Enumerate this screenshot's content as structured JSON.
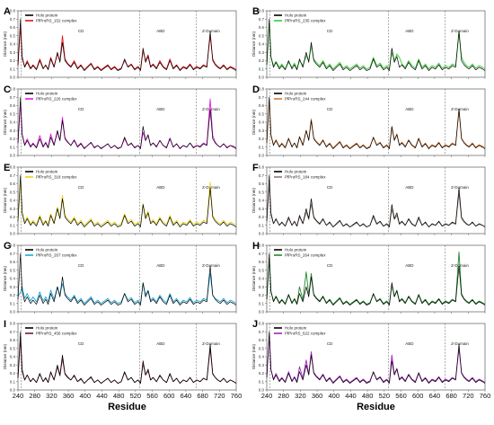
{
  "figure": {
    "xlabel": "Residue",
    "ylabel": "Distance (nm)",
    "x_ticks": [
      240,
      280,
      320,
      360,
      400,
      440,
      480,
      520,
      560,
      600,
      640,
      680,
      720,
      760
    ],
    "xlim": [
      240,
      760
    ],
    "ylim": [
      0,
      0.8
    ],
    "y_ticks": [
      "0.0",
      "0.1",
      "0.2",
      "0.3",
      "0.4",
      "0.5",
      "0.6",
      "0.7",
      "0.8"
    ],
    "regions": [
      {
        "label": "CD",
        "x": 390
      },
      {
        "label": "ABD",
        "x": 580
      },
      {
        "label": "Z-Domain",
        "x": 700
      }
    ],
    "boundaries": [
      247,
      530,
      665
    ],
    "reference_series": {
      "name": "Holo protein",
      "color": "#000000"
    },
    "panels": [
      {
        "letter": "A",
        "ligand": "PfProRS_152 complex",
        "color": "#e3141c",
        "show_regions": true
      },
      {
        "letter": "B",
        "ligand": "PfProRS_235 complex",
        "color": "#2fd12f",
        "show_regions": true
      },
      {
        "letter": "C",
        "ligand": "PfProRS_226 complex",
        "color": "#e21ce0",
        "show_regions": true
      },
      {
        "letter": "D",
        "ligand": "PfProRS_244 complex",
        "color": "#d97a32",
        "show_regions": true
      },
      {
        "letter": "E",
        "ligand": "PfProRS_318 complex",
        "color": "#e8d317",
        "show_regions": true
      },
      {
        "letter": "F",
        "ligand": "PfProRS_184 complex",
        "color": "#8c7b72",
        "show_regions": true
      },
      {
        "letter": "G",
        "ligand": "PfProRS_267 complex",
        "color": "#1aa6d9",
        "show_regions": true
      },
      {
        "letter": "H",
        "ligand": "PfProRS_264 complex",
        "color": "#1f8a2a",
        "show_regions": true
      },
      {
        "letter": "I",
        "ligand": "PfProRS_456 complex",
        "color": "#6b1e2a",
        "show_regions": true
      },
      {
        "letter": "J",
        "ligand": "PfProRS_622 complex",
        "color": "#a61fc4",
        "show_regions": true
      }
    ]
  },
  "chart_data": {
    "type": "line",
    "xlabel": "Residue",
    "ylabel": "Distance (nm)",
    "xlim": [
      240,
      760
    ],
    "ylim": [
      0,
      0.8
    ],
    "holo": {
      "name": "Holo protein",
      "x": [
        240,
        246,
        250,
        256,
        262,
        270,
        276,
        284,
        292,
        300,
        306,
        312,
        318,
        326,
        334,
        340,
        346,
        352,
        358,
        366,
        374,
        382,
        390,
        398,
        406,
        414,
        422,
        430,
        438,
        446,
        454,
        462,
        470,
        478,
        486,
        494,
        502,
        510,
        518,
        526,
        532,
        538,
        544,
        550,
        556,
        562,
        570,
        578,
        586,
        594,
        602,
        610,
        618,
        626,
        634,
        642,
        650,
        658,
        666,
        674,
        682,
        690,
        698,
        704,
        710,
        716,
        722,
        730,
        738,
        746,
        754,
        760
      ],
      "y": [
        0.15,
        0.7,
        0.25,
        0.12,
        0.18,
        0.1,
        0.14,
        0.09,
        0.2,
        0.1,
        0.15,
        0.09,
        0.22,
        0.12,
        0.3,
        0.18,
        0.42,
        0.2,
        0.16,
        0.12,
        0.18,
        0.1,
        0.14,
        0.08,
        0.12,
        0.16,
        0.09,
        0.12,
        0.08,
        0.11,
        0.14,
        0.09,
        0.12,
        0.08,
        0.1,
        0.22,
        0.12,
        0.15,
        0.09,
        0.12,
        0.08,
        0.35,
        0.18,
        0.25,
        0.12,
        0.15,
        0.1,
        0.18,
        0.12,
        0.09,
        0.2,
        0.1,
        0.14,
        0.08,
        0.12,
        0.1,
        0.15,
        0.09,
        0.12,
        0.1,
        0.14,
        0.12,
        0.55,
        0.2,
        0.15,
        0.12,
        0.1,
        0.14,
        0.09,
        0.12,
        0.1,
        0.08
      ]
    },
    "series": [
      {
        "name": "PfProRS_152 complex",
        "panel": "A",
        "y": [
          0.14,
          0.62,
          0.22,
          0.13,
          0.2,
          0.11,
          0.15,
          0.1,
          0.22,
          0.11,
          0.14,
          0.1,
          0.24,
          0.13,
          0.28,
          0.2,
          0.5,
          0.22,
          0.17,
          0.13,
          0.2,
          0.11,
          0.15,
          0.09,
          0.13,
          0.17,
          0.1,
          0.13,
          0.09,
          0.12,
          0.15,
          0.1,
          0.13,
          0.09,
          0.11,
          0.2,
          0.13,
          0.16,
          0.1,
          0.13,
          0.09,
          0.32,
          0.2,
          0.27,
          0.13,
          0.16,
          0.11,
          0.2,
          0.13,
          0.1,
          0.22,
          0.11,
          0.15,
          0.09,
          0.13,
          0.11,
          0.16,
          0.1,
          0.13,
          0.11,
          0.15,
          0.13,
          0.5,
          0.22,
          0.16,
          0.13,
          0.11,
          0.15,
          0.1,
          0.13,
          0.11,
          0.09
        ]
      },
      {
        "name": "PfProRS_235 complex",
        "panel": "B",
        "y": [
          0.13,
          0.66,
          0.24,
          0.14,
          0.19,
          0.12,
          0.16,
          0.1,
          0.18,
          0.12,
          0.17,
          0.1,
          0.2,
          0.14,
          0.26,
          0.2,
          0.38,
          0.22,
          0.18,
          0.14,
          0.2,
          0.12,
          0.16,
          0.1,
          0.14,
          0.18,
          0.11,
          0.14,
          0.1,
          0.13,
          0.16,
          0.11,
          0.14,
          0.1,
          0.12,
          0.24,
          0.14,
          0.17,
          0.11,
          0.14,
          0.1,
          0.3,
          0.2,
          0.28,
          0.24,
          0.16,
          0.12,
          0.2,
          0.14,
          0.11,
          0.22,
          0.12,
          0.16,
          0.1,
          0.14,
          0.12,
          0.17,
          0.11,
          0.14,
          0.12,
          0.16,
          0.14,
          0.55,
          0.24,
          0.18,
          0.14,
          0.12,
          0.16,
          0.11,
          0.14,
          0.12,
          0.1
        ]
      },
      {
        "name": "PfProRS_226 complex",
        "panel": "C",
        "y": [
          0.14,
          0.64,
          0.26,
          0.13,
          0.2,
          0.11,
          0.15,
          0.1,
          0.24,
          0.11,
          0.16,
          0.1,
          0.26,
          0.13,
          0.28,
          0.18,
          0.46,
          0.21,
          0.17,
          0.12,
          0.19,
          0.11,
          0.15,
          0.09,
          0.12,
          0.15,
          0.1,
          0.12,
          0.09,
          0.11,
          0.14,
          0.09,
          0.12,
          0.09,
          0.1,
          0.2,
          0.12,
          0.14,
          0.1,
          0.12,
          0.09,
          0.28,
          0.18,
          0.24,
          0.12,
          0.15,
          0.11,
          0.18,
          0.12,
          0.1,
          0.21,
          0.1,
          0.14,
          0.09,
          0.12,
          0.1,
          0.15,
          0.1,
          0.12,
          0.11,
          0.15,
          0.13,
          0.68,
          0.24,
          0.16,
          0.12,
          0.1,
          0.14,
          0.1,
          0.12,
          0.11,
          0.09
        ]
      },
      {
        "name": "PfProRS_244 complex",
        "panel": "D",
        "y": [
          0.15,
          0.68,
          0.24,
          0.13,
          0.19,
          0.11,
          0.15,
          0.1,
          0.21,
          0.11,
          0.15,
          0.1,
          0.23,
          0.13,
          0.3,
          0.19,
          0.44,
          0.21,
          0.17,
          0.13,
          0.19,
          0.11,
          0.15,
          0.09,
          0.13,
          0.17,
          0.1,
          0.13,
          0.09,
          0.12,
          0.15,
          0.1,
          0.13,
          0.09,
          0.11,
          0.21,
          0.13,
          0.16,
          0.1,
          0.13,
          0.09,
          0.33,
          0.19,
          0.26,
          0.13,
          0.16,
          0.11,
          0.19,
          0.13,
          0.1,
          0.21,
          0.11,
          0.15,
          0.09,
          0.13,
          0.11,
          0.16,
          0.1,
          0.13,
          0.11,
          0.15,
          0.13,
          0.56,
          0.21,
          0.16,
          0.13,
          0.11,
          0.15,
          0.1,
          0.13,
          0.11,
          0.09
        ]
      },
      {
        "name": "PfProRS_318 complex",
        "panel": "E",
        "y": [
          0.16,
          0.66,
          0.26,
          0.14,
          0.2,
          0.12,
          0.16,
          0.11,
          0.22,
          0.12,
          0.16,
          0.11,
          0.24,
          0.14,
          0.32,
          0.2,
          0.46,
          0.22,
          0.18,
          0.14,
          0.2,
          0.12,
          0.16,
          0.1,
          0.14,
          0.18,
          0.11,
          0.14,
          0.1,
          0.13,
          0.16,
          0.11,
          0.14,
          0.1,
          0.12,
          0.24,
          0.14,
          0.17,
          0.11,
          0.14,
          0.1,
          0.36,
          0.2,
          0.27,
          0.14,
          0.17,
          0.12,
          0.2,
          0.14,
          0.11,
          0.22,
          0.12,
          0.16,
          0.1,
          0.14,
          0.12,
          0.17,
          0.11,
          0.14,
          0.12,
          0.16,
          0.14,
          0.62,
          0.22,
          0.17,
          0.14,
          0.12,
          0.16,
          0.11,
          0.14,
          0.12,
          0.1
        ]
      },
      {
        "name": "PfProRS_184 complex",
        "panel": "F",
        "y": [
          0.14,
          0.6,
          0.22,
          0.12,
          0.17,
          0.1,
          0.13,
          0.09,
          0.18,
          0.1,
          0.14,
          0.09,
          0.2,
          0.12,
          0.26,
          0.17,
          0.36,
          0.19,
          0.15,
          0.11,
          0.17,
          0.1,
          0.13,
          0.08,
          0.11,
          0.15,
          0.09,
          0.11,
          0.08,
          0.1,
          0.13,
          0.09,
          0.11,
          0.08,
          0.1,
          0.2,
          0.11,
          0.14,
          0.09,
          0.11,
          0.08,
          0.3,
          0.17,
          0.22,
          0.11,
          0.14,
          0.1,
          0.17,
          0.11,
          0.09,
          0.18,
          0.1,
          0.13,
          0.08,
          0.11,
          0.1,
          0.14,
          0.09,
          0.11,
          0.1,
          0.13,
          0.11,
          0.48,
          0.18,
          0.14,
          0.11,
          0.1,
          0.13,
          0.09,
          0.11,
          0.1,
          0.08
        ]
      },
      {
        "name": "PfProRS_267 complex",
        "panel": "G",
        "y": [
          0.18,
          0.24,
          0.3,
          0.16,
          0.22,
          0.13,
          0.18,
          0.12,
          0.24,
          0.13,
          0.18,
          0.12,
          0.26,
          0.15,
          0.3,
          0.2,
          0.34,
          0.22,
          0.18,
          0.14,
          0.2,
          0.12,
          0.16,
          0.1,
          0.14,
          0.18,
          0.11,
          0.14,
          0.1,
          0.13,
          0.16,
          0.11,
          0.14,
          0.1,
          0.12,
          0.22,
          0.14,
          0.17,
          0.11,
          0.14,
          0.1,
          0.34,
          0.2,
          0.26,
          0.14,
          0.17,
          0.12,
          0.2,
          0.14,
          0.11,
          0.22,
          0.12,
          0.16,
          0.1,
          0.14,
          0.12,
          0.17,
          0.11,
          0.14,
          0.12,
          0.16,
          0.14,
          0.46,
          0.2,
          0.16,
          0.14,
          0.12,
          0.16,
          0.11,
          0.14,
          0.12,
          0.1
        ]
      },
      {
        "name": "PfProRS_264 complex",
        "panel": "H",
        "y": [
          0.15,
          0.64,
          0.24,
          0.13,
          0.19,
          0.11,
          0.15,
          0.1,
          0.21,
          0.11,
          0.16,
          0.1,
          0.3,
          0.14,
          0.48,
          0.2,
          0.46,
          0.21,
          0.17,
          0.13,
          0.19,
          0.11,
          0.15,
          0.09,
          0.13,
          0.17,
          0.1,
          0.13,
          0.09,
          0.12,
          0.15,
          0.1,
          0.13,
          0.09,
          0.11,
          0.21,
          0.13,
          0.16,
          0.1,
          0.13,
          0.09,
          0.32,
          0.19,
          0.26,
          0.13,
          0.16,
          0.11,
          0.19,
          0.13,
          0.1,
          0.21,
          0.11,
          0.15,
          0.09,
          0.13,
          0.11,
          0.16,
          0.1,
          0.13,
          0.11,
          0.15,
          0.13,
          0.72,
          0.22,
          0.16,
          0.13,
          0.11,
          0.15,
          0.1,
          0.13,
          0.11,
          0.09
        ]
      },
      {
        "name": "PfProRS_456 complex",
        "panel": "I",
        "y": [
          0.14,
          0.62,
          0.22,
          0.12,
          0.18,
          0.1,
          0.14,
          0.09,
          0.19,
          0.1,
          0.14,
          0.09,
          0.21,
          0.12,
          0.28,
          0.17,
          0.38,
          0.19,
          0.15,
          0.12,
          0.17,
          0.1,
          0.13,
          0.08,
          0.12,
          0.15,
          0.09,
          0.12,
          0.08,
          0.11,
          0.14,
          0.09,
          0.12,
          0.08,
          0.1,
          0.21,
          0.12,
          0.15,
          0.09,
          0.12,
          0.08,
          0.32,
          0.18,
          0.23,
          0.12,
          0.15,
          0.1,
          0.17,
          0.12,
          0.09,
          0.19,
          0.1,
          0.14,
          0.08,
          0.12,
          0.1,
          0.15,
          0.09,
          0.12,
          0.1,
          0.14,
          0.12,
          0.5,
          0.19,
          0.15,
          0.12,
          0.1,
          0.14,
          0.09,
          0.12,
          0.1,
          0.08
        ]
      },
      {
        "name": "PfProRS_622 complex",
        "panel": "J",
        "y": [
          0.15,
          0.66,
          0.24,
          0.13,
          0.2,
          0.11,
          0.15,
          0.1,
          0.22,
          0.11,
          0.16,
          0.1,
          0.28,
          0.14,
          0.36,
          0.19,
          0.46,
          0.21,
          0.17,
          0.13,
          0.19,
          0.11,
          0.15,
          0.09,
          0.13,
          0.17,
          0.1,
          0.13,
          0.09,
          0.12,
          0.15,
          0.1,
          0.13,
          0.09,
          0.11,
          0.21,
          0.13,
          0.16,
          0.1,
          0.13,
          0.09,
          0.42,
          0.19,
          0.26,
          0.13,
          0.16,
          0.11,
          0.19,
          0.13,
          0.1,
          0.21,
          0.11,
          0.15,
          0.09,
          0.13,
          0.11,
          0.16,
          0.1,
          0.13,
          0.11,
          0.15,
          0.13,
          0.5,
          0.21,
          0.16,
          0.13,
          0.11,
          0.15,
          0.1,
          0.13,
          0.11,
          0.09
        ]
      }
    ]
  }
}
